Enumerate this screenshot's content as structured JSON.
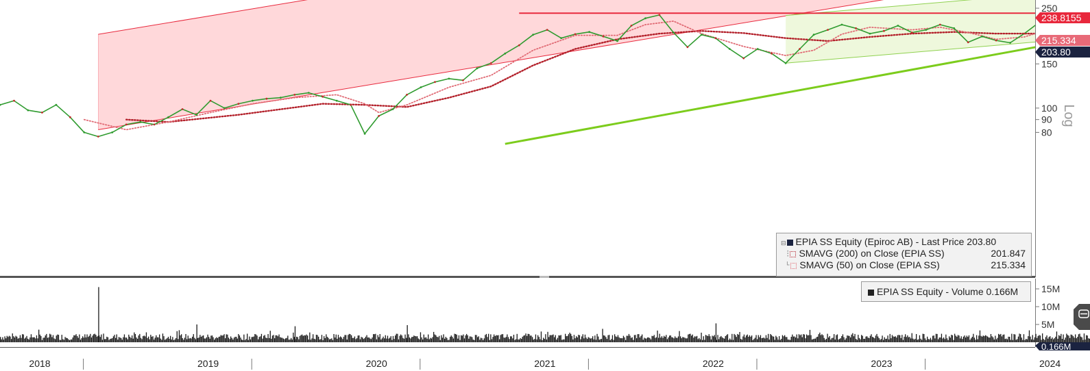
{
  "chart_data": [
    {
      "type": "line",
      "scale": "log",
      "ylim": [
        72,
        252
      ],
      "y_ticks": [
        {
          "value": 80,
          "label": "80"
        },
        {
          "value": 90,
          "label": "90"
        },
        {
          "value": 100,
          "label": "100"
        },
        {
          "value": 150,
          "label": "150"
        },
        {
          "value": 250,
          "label": "250"
        }
      ],
      "axis_side_label": "Log",
      "x_year_labels": [
        "2018",
        "2019",
        "2020",
        "2021",
        "2022",
        "2023",
        "2024"
      ],
      "price_tags": [
        {
          "label": "238.8155",
          "value": 238.8155,
          "color": "#e8283c"
        },
        {
          "label": "215.334",
          "value": 215.334,
          "color": "#e86a78"
        },
        {
          "label": "203.80",
          "value": 203.8,
          "color": "#1b2340"
        }
      ],
      "resistance_level": 238.8155,
      "series": [
        {
          "name": "EPIA SS Equity (Epiroc AB) - Last Price",
          "last_value": "203.80",
          "color": "#2f9b2f",
          "points": [
            [
              "2018-01",
              103
            ],
            [
              "2018-02",
              107
            ],
            [
              "2018-03",
              98
            ],
            [
              "2018-04",
              96
            ],
            [
              "2018-05",
              103
            ],
            [
              "2018-06",
              92
            ],
            [
              "2018-07",
              80
            ],
            [
              "2018-08",
              77
            ],
            [
              "2018-09",
              80
            ],
            [
              "2018-10",
              86
            ],
            [
              "2018-11",
              88
            ],
            [
              "2018-12",
              86
            ],
            [
              "2019-01",
              92
            ],
            [
              "2019-02",
              99
            ],
            [
              "2019-03",
              94
            ],
            [
              "2019-04",
              107
            ],
            [
              "2019-05",
              100
            ],
            [
              "2019-06",
              104
            ],
            [
              "2019-07",
              107
            ],
            [
              "2019-08",
              109
            ],
            [
              "2019-09",
              110
            ],
            [
              "2019-10",
              113
            ],
            [
              "2019-11",
              115
            ],
            [
              "2019-12",
              111
            ],
            [
              "2020-01",
              107
            ],
            [
              "2020-02",
              103
            ],
            [
              "2020-03",
              79
            ],
            [
              "2020-04",
              93
            ],
            [
              "2020-05",
              99
            ],
            [
              "2020-06",
              113
            ],
            [
              "2020-07",
              121
            ],
            [
              "2020-08",
              127
            ],
            [
              "2020-09",
              131
            ],
            [
              "2020-10",
              129
            ],
            [
              "2020-11",
              144
            ],
            [
              "2020-12",
              151
            ],
            [
              "2021-01",
              165
            ],
            [
              "2021-02",
              178
            ],
            [
              "2021-03",
              196
            ],
            [
              "2021-04",
              205
            ],
            [
              "2021-05",
              190
            ],
            [
              "2021-06",
              197
            ],
            [
              "2021-07",
              201
            ],
            [
              "2021-08",
              193
            ],
            [
              "2021-09",
              185
            ],
            [
              "2021-10",
              213
            ],
            [
              "2021-11",
              228
            ],
            [
              "2021-12",
              235
            ],
            [
              "2022-01",
              200
            ],
            [
              "2022-02",
              175
            ],
            [
              "2022-03",
              196
            ],
            [
              "2022-04",
              190
            ],
            [
              "2022-05",
              172
            ],
            [
              "2022-06",
              158
            ],
            [
              "2022-07",
              172
            ],
            [
              "2022-08",
              165
            ],
            [
              "2022-09",
              151
            ],
            [
              "2022-10",
              172
            ],
            [
              "2022-11",
              196
            ],
            [
              "2022-12",
              205
            ],
            [
              "2023-01",
              215
            ],
            [
              "2023-02",
              208
            ],
            [
              "2023-03",
              198
            ],
            [
              "2023-04",
              203
            ],
            [
              "2023-05",
              213
            ],
            [
              "2023-06",
              200
            ],
            [
              "2023-07",
              205
            ],
            [
              "2023-08",
              215
            ],
            [
              "2023-09",
              208
            ],
            [
              "2023-10",
              183
            ],
            [
              "2023-11",
              193
            ],
            [
              "2023-12",
              186
            ],
            [
              "2024-01",
              182
            ],
            [
              "2024-02",
              198
            ],
            [
              "2024-03",
              218
            ],
            [
              "2024-04",
              212
            ],
            [
              "2024-05",
              235
            ],
            [
              "2024-06",
              220
            ],
            [
              "2024-07",
              203.8
            ]
          ]
        },
        {
          "name": "SMAVG (200)  on Close (EPIA SS)",
          "last_value": "201.847",
          "color": "#b3202a",
          "points": [
            [
              "2018-10",
              90
            ],
            [
              "2019-01",
              88
            ],
            [
              "2019-06",
              94
            ],
            [
              "2019-12",
              104
            ],
            [
              "2020-03",
              103
            ],
            [
              "2020-06",
              101
            ],
            [
              "2020-09",
              110
            ],
            [
              "2020-12",
              122
            ],
            [
              "2021-03",
              148
            ],
            [
              "2021-06",
              172
            ],
            [
              "2021-09",
              188
            ],
            [
              "2021-12",
              198
            ],
            [
              "2022-03",
              203
            ],
            [
              "2022-06",
              199
            ],
            [
              "2022-09",
              190
            ],
            [
              "2022-12",
              185
            ],
            [
              "2023-03",
              192
            ],
            [
              "2023-06",
              198
            ],
            [
              "2023-09",
              201
            ],
            [
              "2023-12",
              198
            ],
            [
              "2024-03",
              198
            ],
            [
              "2024-07",
              201.847
            ]
          ]
        },
        {
          "name": "SMAVG (50)  on Close (EPIA SS)",
          "last_value": "215.334",
          "color": "#e06a74",
          "points": [
            [
              "2018-07",
              90
            ],
            [
              "2018-10",
              82
            ],
            [
              "2019-01",
              88
            ],
            [
              "2019-04",
              96
            ],
            [
              "2019-07",
              104
            ],
            [
              "2019-10",
              110
            ],
            [
              "2020-01",
              113
            ],
            [
              "2020-03",
              104
            ],
            [
              "2020-04",
              96
            ],
            [
              "2020-06",
              103
            ],
            [
              "2020-09",
              121
            ],
            [
              "2020-12",
              135
            ],
            [
              "2021-03",
              170
            ],
            [
              "2021-06",
              195
            ],
            [
              "2021-09",
              195
            ],
            [
              "2021-11",
              215
            ],
            [
              "2022-01",
              222
            ],
            [
              "2022-03",
              198
            ],
            [
              "2022-06",
              176
            ],
            [
              "2022-09",
              162
            ],
            [
              "2022-11",
              170
            ],
            [
              "2023-01",
              197
            ],
            [
              "2023-03",
              210
            ],
            [
              "2023-06",
              205
            ],
            [
              "2023-08",
              210
            ],
            [
              "2023-10",
              200
            ],
            [
              "2023-12",
              188
            ],
            [
              "2024-02",
              192
            ],
            [
              "2024-04",
              208
            ],
            [
              "2024-06",
              218
            ],
            [
              "2024-07",
              215.334
            ]
          ]
        }
      ],
      "channels": [
        {
          "kind": "rising-channel",
          "color": "#e8283c",
          "fill": "#ffd6d8",
          "start": [
            "2018-08",
            82
          ],
          "end": [
            "2022-10",
            238
          ],
          "width": 0.38
        },
        {
          "kind": "rising-channel",
          "color": "#8fd14f",
          "fill": "#ecf7d8",
          "start": [
            "2022-09",
            151
          ],
          "end": [
            "2024-07",
            192
          ],
          "width": 0.19
        }
      ],
      "support_line": {
        "color": "#7ccc1c",
        "start": [
          "2021-01",
          72
        ],
        "end": [
          "2024-07",
          193
        ]
      }
    },
    {
      "type": "bar",
      "series_name": "EPIA SS Equity - Volume",
      "last_value": "0.166M",
      "ylim": [
        0,
        17
      ],
      "y_ticks": [
        "15M",
        "10M",
        "5M"
      ],
      "last_tag": "0.166M",
      "spikes": [
        {
          "date": "2018-08",
          "value": 15.5
        },
        {
          "date": "2019-03",
          "value": 5.0
        },
        {
          "date": "2019-10",
          "value": 4.5
        },
        {
          "date": "2020-06",
          "value": 4.8
        },
        {
          "date": "2022-04",
          "value": 5.3
        }
      ],
      "typical_range": [
        0.6,
        2.4
      ]
    }
  ],
  "legend": {
    "price": {
      "label": "EPIA SS Equity (Epiroc AB) - Last Price 203.80"
    },
    "sma200": {
      "label": "SMAVG (200)  on Close (EPIA SS)",
      "value": "201.847"
    },
    "sma50": {
      "label": "SMAVG (50)  on Close (EPIA SS)",
      "value": "215.334"
    },
    "volume": {
      "label": "EPIA SS Equity - Volume 0.166M"
    }
  }
}
